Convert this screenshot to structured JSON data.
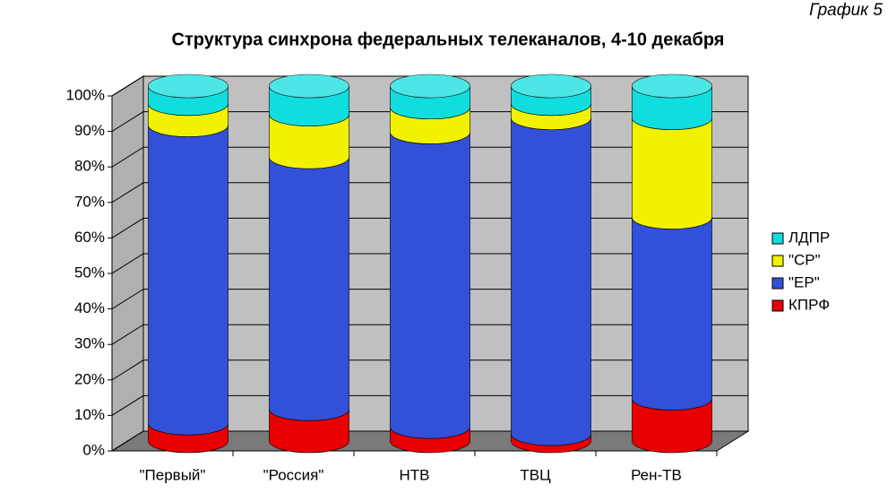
{
  "chart_data": {
    "type": "stacked_cylinder",
    "title": "Структура синхрона федеральных телеканалов, 4-10 декабря",
    "annotation": "График 5",
    "categories": [
      "\"Первый\"",
      "\"Россия\"",
      "НТВ",
      "ТВЦ",
      "Рен-ТВ"
    ],
    "series": [
      {
        "name": "КПРФ",
        "color": "#e80000",
        "values": [
          5,
          9,
          4,
          2,
          12
        ]
      },
      {
        "name": "\"ЕР\"",
        "color": "#3350d8",
        "values": [
          84,
          71,
          83,
          89,
          51
        ]
      },
      {
        "name": "\"СР\"",
        "color": "#f2f200",
        "values": [
          6,
          12,
          7,
          4,
          28
        ]
      },
      {
        "name": "ЛДПР",
        "color": "#10dede",
        "values": [
          5,
          8,
          6,
          5,
          9
        ]
      }
    ],
    "ylim": [
      0,
      100
    ],
    "yticks": [
      {
        "value": 0,
        "label": "0%"
      },
      {
        "value": 10,
        "label": "10%"
      },
      {
        "value": 20,
        "label": "20%"
      },
      {
        "value": 30,
        "label": "30%"
      },
      {
        "value": 40,
        "label": "40%"
      },
      {
        "value": 50,
        "label": "50%"
      },
      {
        "value": 60,
        "label": "60%"
      },
      {
        "value": 70,
        "label": "70%"
      },
      {
        "value": 80,
        "label": "80%"
      },
      {
        "value": 90,
        "label": "90%"
      },
      {
        "value": 100,
        "label": "100%"
      }
    ],
    "grid": true,
    "legend": "right"
  }
}
